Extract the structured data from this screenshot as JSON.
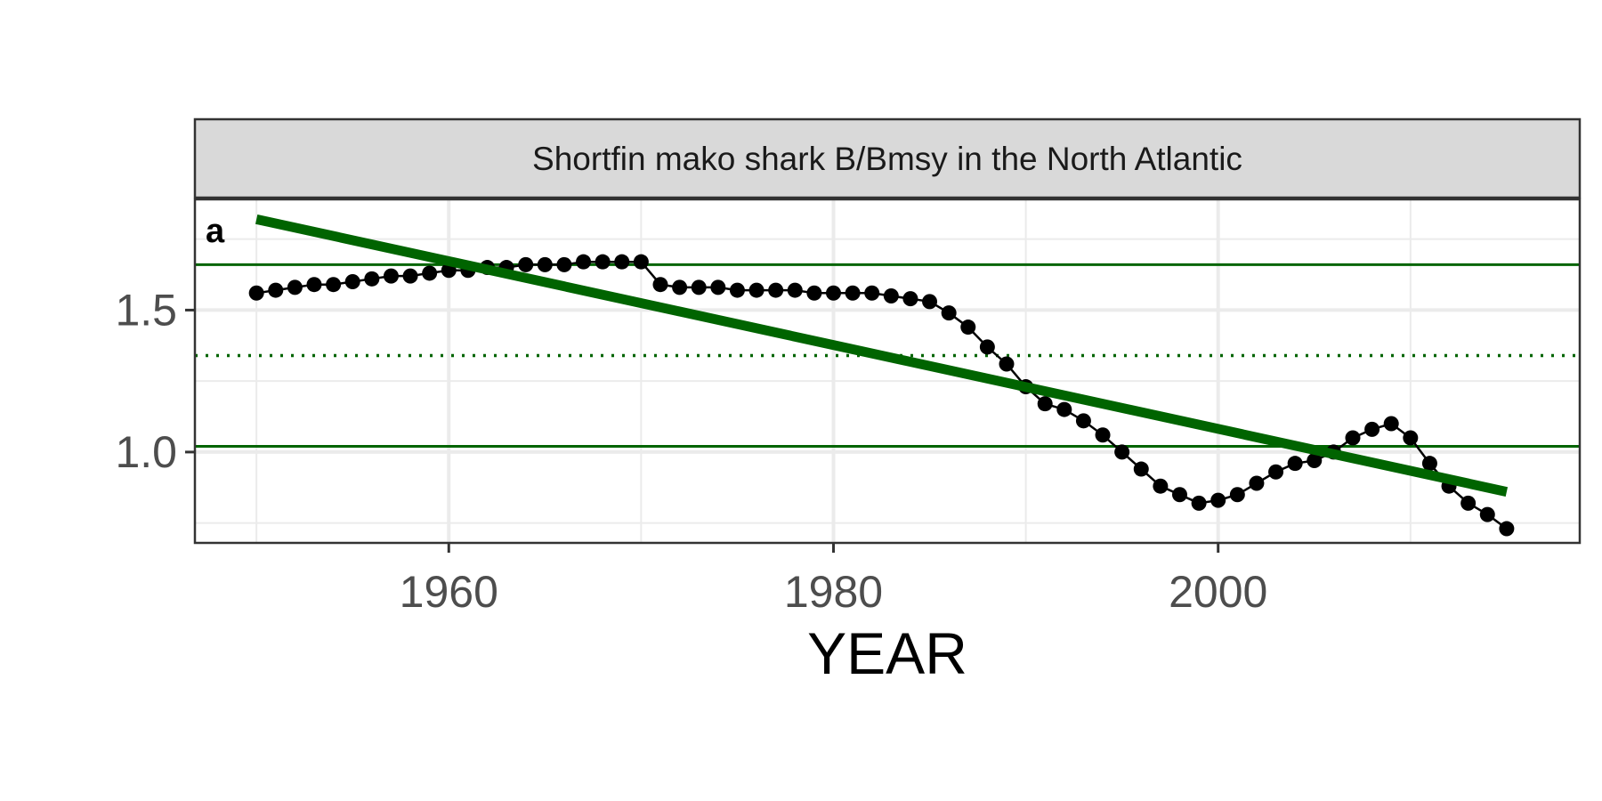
{
  "chart_data": {
    "type": "line",
    "title": "Shortfin mako shark B/Bmsy in the North Atlantic",
    "panel_tag": "a",
    "xlabel": "YEAR",
    "ylabel": "",
    "xlim": [
      1946.8,
      2018.8
    ],
    "ylim": [
      0.68,
      1.89
    ],
    "x_ticks": [
      1960,
      1980,
      2000
    ],
    "x_minor_ticks": [
      1950,
      1970,
      1990,
      2010
    ],
    "y_ticks": [
      1.0,
      1.5
    ],
    "y_minor_ticks": [
      0.75,
      1.25,
      1.75
    ],
    "grid": true,
    "legend": "none",
    "colors": {
      "series": "#000000",
      "trend": "#006400",
      "reference": "#006400",
      "strip_fill": "#d9d9d9",
      "grid": "#ebebeb"
    },
    "series": [
      {
        "x": [
          1950,
          1951,
          1952,
          1953,
          1954,
          1955,
          1956,
          1957,
          1958,
          1959,
          1960,
          1961,
          1962,
          1963,
          1964,
          1965,
          1966,
          1967,
          1968,
          1969,
          1970,
          1971,
          1972,
          1973,
          1974,
          1975,
          1976,
          1977,
          1978,
          1979,
          1980,
          1981,
          1982,
          1983,
          1984,
          1985,
          1986,
          1987,
          1988,
          1989,
          1990,
          1991,
          1992,
          1993,
          1994,
          1995,
          1996,
          1997,
          1998,
          1999,
          2000,
          2001,
          2002,
          2003,
          2004,
          2005,
          2006,
          2007,
          2008,
          2009,
          2010,
          2011,
          2012,
          2013,
          2014,
          2015
        ],
        "y": [
          1.56,
          1.57,
          1.58,
          1.59,
          1.59,
          1.6,
          1.61,
          1.62,
          1.62,
          1.63,
          1.64,
          1.64,
          1.65,
          1.65,
          1.66,
          1.66,
          1.66,
          1.67,
          1.67,
          1.67,
          1.67,
          1.59,
          1.58,
          1.58,
          1.58,
          1.57,
          1.57,
          1.57,
          1.57,
          1.56,
          1.56,
          1.56,
          1.56,
          1.55,
          1.54,
          1.53,
          1.49,
          1.44,
          1.37,
          1.31,
          1.23,
          1.17,
          1.15,
          1.11,
          1.06,
          1.0,
          0.94,
          0.88,
          0.85,
          0.82,
          0.83,
          0.85,
          0.89,
          0.93,
          0.96,
          0.97,
          1.0,
          1.05,
          1.08,
          1.1,
          1.05,
          0.96,
          0.88,
          0.82,
          0.78,
          0.73
        ]
      }
    ],
    "trend_line": {
      "x": [
        1950,
        2015
      ],
      "y": [
        1.82,
        0.86
      ]
    },
    "reference_lines": [
      {
        "y": 1.66,
        "style": "solid"
      },
      {
        "y": 1.34,
        "style": "dotted"
      },
      {
        "y": 1.02,
        "style": "solid"
      }
    ]
  }
}
